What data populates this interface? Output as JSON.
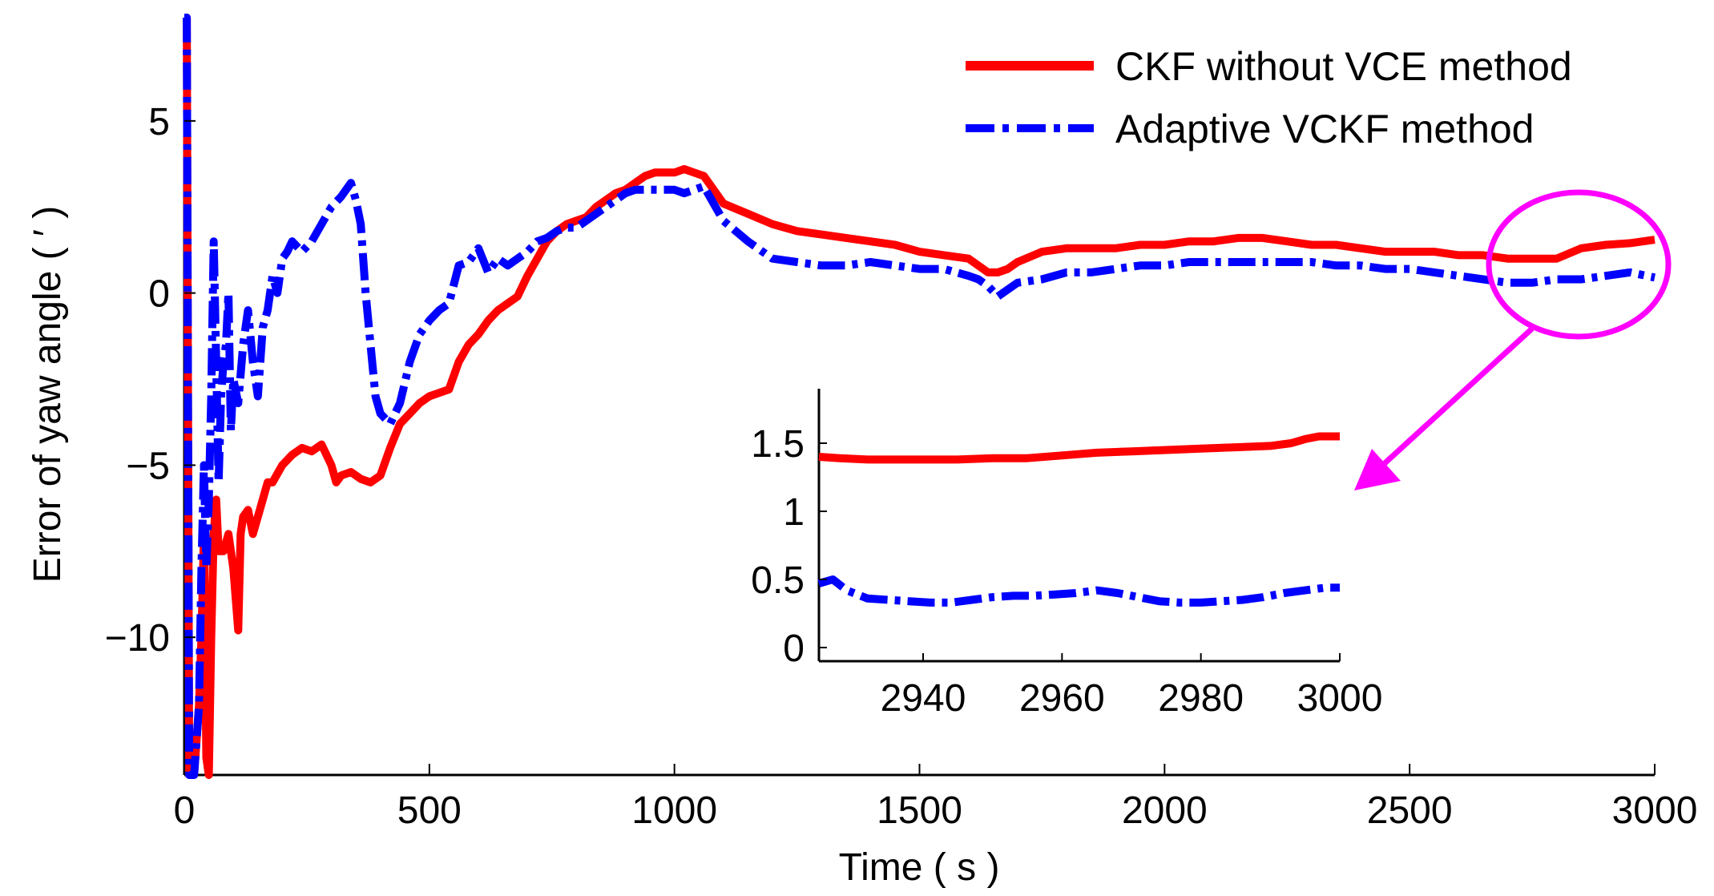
{
  "chart_data": [
    {
      "type": "line",
      "id": "main",
      "title": "",
      "xlabel": "Time ( s )",
      "ylabel": "Error of yaw angle ( ′ )",
      "xlim": [
        0,
        3000
      ],
      "ylim": [
        -14,
        8
      ],
      "xticks": [
        0,
        500,
        1000,
        1500,
        2000,
        2500,
        3000
      ],
      "yticks": [
        -10,
        -5,
        0,
        5
      ],
      "xtick_labels": [
        "0",
        "500",
        "1000",
        "1500",
        "2000",
        "2500",
        "3000"
      ],
      "ytick_labels": [
        "−10",
        "−5",
        "0",
        "5"
      ],
      "legend": {
        "placement": "top-right"
      },
      "series": [
        {
          "name": "CKF without VCE method",
          "color": "#ff0000",
          "style": "solid",
          "x": [
            0,
            5,
            10,
            15,
            20,
            25,
            30,
            35,
            40,
            45,
            50,
            55,
            60,
            65,
            70,
            80,
            90,
            100,
            110,
            115,
            120,
            130,
            140,
            150,
            160,
            170,
            180,
            200,
            220,
            240,
            260,
            280,
            300,
            310,
            320,
            340,
            360,
            380,
            400,
            420,
            440,
            460,
            480,
            500,
            520,
            540,
            560,
            580,
            600,
            620,
            640,
            660,
            680,
            700,
            720,
            740,
            760,
            780,
            800,
            820,
            840,
            860,
            880,
            900,
            920,
            940,
            960,
            980,
            1000,
            1020,
            1040,
            1060,
            1080,
            1100,
            1150,
            1200,
            1250,
            1300,
            1350,
            1400,
            1450,
            1500,
            1550,
            1600,
            1620,
            1640,
            1660,
            1680,
            1700,
            1750,
            1800,
            1850,
            1900,
            1950,
            2000,
            2050,
            2100,
            2150,
            2200,
            2250,
            2300,
            2350,
            2400,
            2450,
            2500,
            2550,
            2600,
            2650,
            2700,
            2750,
            2800,
            2850,
            2900,
            2950,
            3000
          ],
          "values": [
            8,
            8,
            -14,
            -14,
            -14,
            -13,
            -12,
            -10,
            -7,
            -13.5,
            -14,
            -10,
            -7,
            -6,
            -7.5,
            -7.5,
            -7,
            -8,
            -9.8,
            -7,
            -6.5,
            -6.3,
            -7,
            -6.5,
            -6,
            -5.5,
            -5.5,
            -5,
            -4.7,
            -4.5,
            -4.6,
            -4.4,
            -5,
            -5.5,
            -5.3,
            -5.2,
            -5.4,
            -5.5,
            -5.3,
            -4.5,
            -3.8,
            -3.5,
            -3.2,
            -3,
            -2.9,
            -2.8,
            -2,
            -1.5,
            -1.2,
            -0.8,
            -0.5,
            -0.3,
            -0.1,
            0.5,
            1,
            1.5,
            1.8,
            2,
            2.1,
            2.2,
            2.5,
            2.7,
            2.9,
            3.0,
            3.2,
            3.4,
            3.5,
            3.5,
            3.5,
            3.6,
            3.5,
            3.4,
            3.0,
            2.6,
            2.3,
            2.0,
            1.8,
            1.7,
            1.6,
            1.5,
            1.4,
            1.2,
            1.1,
            1.0,
            0.8,
            0.6,
            0.6,
            0.7,
            0.9,
            1.2,
            1.3,
            1.3,
            1.3,
            1.4,
            1.4,
            1.5,
            1.5,
            1.6,
            1.6,
            1.5,
            1.4,
            1.4,
            1.3,
            1.2,
            1.2,
            1.2,
            1.1,
            1.1,
            1.0,
            1.0,
            1.0,
            1.3,
            1.4,
            1.45,
            1.55
          ]
        },
        {
          "name": "Adaptive VCKF method",
          "color": "#0000ff",
          "style": "dash-dot",
          "x": [
            0,
            5,
            10,
            15,
            20,
            25,
            30,
            35,
            40,
            45,
            50,
            55,
            60,
            65,
            70,
            75,
            80,
            85,
            90,
            95,
            100,
            110,
            120,
            130,
            140,
            150,
            160,
            170,
            180,
            190,
            200,
            210,
            220,
            240,
            260,
            280,
            300,
            320,
            340,
            350,
            360,
            370,
            380,
            390,
            400,
            420,
            440,
            460,
            480,
            500,
            520,
            540,
            560,
            580,
            600,
            620,
            640,
            660,
            680,
            700,
            720,
            740,
            760,
            780,
            800,
            820,
            840,
            860,
            880,
            900,
            920,
            940,
            960,
            980,
            1000,
            1020,
            1040,
            1060,
            1080,
            1100,
            1150,
            1200,
            1250,
            1300,
            1350,
            1400,
            1450,
            1500,
            1550,
            1600,
            1620,
            1640,
            1660,
            1680,
            1700,
            1750,
            1800,
            1850,
            1900,
            1950,
            2000,
            2050,
            2100,
            2150,
            2200,
            2250,
            2300,
            2350,
            2400,
            2450,
            2500,
            2550,
            2600,
            2650,
            2700,
            2750,
            2800,
            2850,
            2900,
            2950,
            3000
          ],
          "values": [
            8,
            8,
            -14,
            -14,
            -14,
            -13,
            -12,
            -8,
            -5,
            -8,
            -6,
            -3,
            1.5,
            -2,
            -5.5,
            -3,
            -2,
            -1.5,
            0,
            -4,
            -2.5,
            -3.2,
            -1.5,
            -0.5,
            -2,
            -3,
            -1,
            -0.5,
            0.5,
            0,
            1,
            1.2,
            1.5,
            1.2,
            1.5,
            2.0,
            2.5,
            2.8,
            3.2,
            2.7,
            2,
            0,
            -1.5,
            -3,
            -3.5,
            -3.8,
            -3.2,
            -2,
            -1.2,
            -0.8,
            -0.5,
            -0.3,
            0.8,
            0.9,
            1.3,
            0.6,
            1,
            0.8,
            1,
            1.2,
            1.5,
            1.6,
            1.8,
            1.9,
            1.9,
            2.1,
            2.3,
            2.5,
            2.7,
            2.9,
            3.0,
            3.0,
            3.0,
            3.0,
            3.0,
            2.9,
            3.0,
            3.1,
            2.6,
            2.1,
            1.5,
            1.0,
            0.9,
            0.8,
            0.8,
            0.9,
            0.8,
            0.7,
            0.7,
            0.5,
            0.4,
            0.2,
            -0.1,
            0.1,
            0.3,
            0.4,
            0.6,
            0.6,
            0.7,
            0.8,
            0.8,
            0.9,
            0.9,
            0.9,
            0.9,
            0.9,
            0.9,
            0.8,
            0.8,
            0.7,
            0.7,
            0.6,
            0.5,
            0.4,
            0.3,
            0.3,
            0.4,
            0.4,
            0.5,
            0.6,
            0.45
          ]
        }
      ]
    },
    {
      "type": "line",
      "id": "inset",
      "title": "",
      "xlabel": "",
      "ylabel": "",
      "xlim": [
        2925,
        3000
      ],
      "ylim": [
        -0.1,
        1.9
      ],
      "xticks": [
        2940,
        2960,
        2980,
        3000
      ],
      "yticks": [
        0,
        0.5,
        1,
        1.5
      ],
      "xtick_labels": [
        "2940",
        "2960",
        "2980",
        "3000"
      ],
      "ytick_labels": [
        "0",
        "0.5",
        "1",
        "1.5"
      ],
      "series": [
        {
          "name": "CKF without VCE method",
          "color": "#ff0000",
          "style": "solid",
          "x": [
            2925,
            2928,
            2932,
            2936,
            2940,
            2945,
            2950,
            2955,
            2960,
            2965,
            2970,
            2975,
            2980,
            2985,
            2990,
            2993,
            2995,
            2997,
            3000
          ],
          "values": [
            1.4,
            1.39,
            1.38,
            1.38,
            1.38,
            1.38,
            1.39,
            1.39,
            1.41,
            1.43,
            1.44,
            1.45,
            1.46,
            1.47,
            1.48,
            1.5,
            1.53,
            1.55,
            1.55
          ]
        },
        {
          "name": "Adaptive VCKF method",
          "color": "#0000ff",
          "style": "dash-dot",
          "x": [
            2925,
            2927,
            2929,
            2932,
            2935,
            2938,
            2941,
            2944,
            2947,
            2950,
            2953,
            2956,
            2959,
            2962,
            2965,
            2968,
            2971,
            2974,
            2977,
            2980,
            2983,
            2986,
            2989,
            2992,
            2995,
            2998,
            3000
          ],
          "values": [
            0.47,
            0.5,
            0.42,
            0.36,
            0.35,
            0.34,
            0.33,
            0.33,
            0.35,
            0.37,
            0.38,
            0.38,
            0.39,
            0.4,
            0.42,
            0.4,
            0.37,
            0.34,
            0.33,
            0.33,
            0.34,
            0.35,
            0.37,
            0.4,
            0.42,
            0.44,
            0.44
          ]
        }
      ]
    }
  ],
  "legend": {
    "items": [
      {
        "label": "CKF without VCE method",
        "color": "#ff0000",
        "style": "solid"
      },
      {
        "label": "Adaptive VCKF method",
        "color": "#0000ff",
        "style": "dash-dot"
      }
    ]
  },
  "annotation": {
    "highlight_color": "#ff00ff",
    "description_label": "zoom callout"
  }
}
